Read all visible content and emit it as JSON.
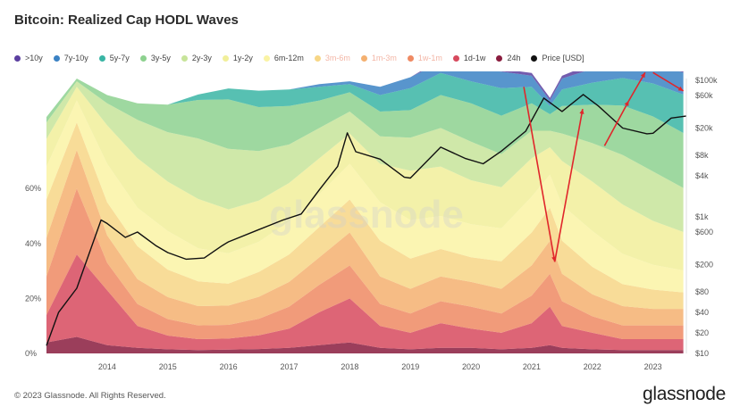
{
  "title": "Bitcoin: Realized Cap HODL Waves",
  "footer": "© 2023 Glassnode. All Rights Reserved.",
  "brand": "glassnode",
  "watermark": "glassnode",
  "legend": [
    {
      "label": ">10y",
      "color": "#5b3fa0",
      "faded": false
    },
    {
      "label": "7y-10y",
      "color": "#3b82c4",
      "faded": false
    },
    {
      "label": "5y-7y",
      "color": "#39b5a4",
      "faded": false
    },
    {
      "label": "3y-5y",
      "color": "#8dd18f",
      "faded": false
    },
    {
      "label": "2y-3y",
      "color": "#c7e49a",
      "faded": false
    },
    {
      "label": "1y-2y",
      "color": "#f1ef9a",
      "faded": false
    },
    {
      "label": "6m-12m",
      "color": "#faf3a4",
      "faded": false
    },
    {
      "label": "3m-6m",
      "color": "#f7d686",
      "faded": true
    },
    {
      "label": "1m-3m",
      "color": "#f4b070",
      "faded": true
    },
    {
      "label": "1w-1m",
      "color": "#ef8a63",
      "faded": true
    },
    {
      "label": "1d-1w",
      "color": "#d74a5e",
      "faded": false
    },
    {
      "label": "24h",
      "color": "#8a1c3e",
      "faded": false
    },
    {
      "label": "Price [USD]",
      "color": "#111111",
      "faded": false
    }
  ],
  "chart_data": {
    "type": "area",
    "title": "Bitcoin: Realized Cap HODL Waves",
    "x_ticks": [
      "2014",
      "2015",
      "2016",
      "2017",
      "2018",
      "2019",
      "2020",
      "2021",
      "2022",
      "2023"
    ],
    "y_left_ticks": [
      "0%",
      "20%",
      "40%",
      "60%"
    ],
    "y_right_ticks": [
      "$10",
      "$20",
      "$40",
      "$80",
      "$200",
      "$600",
      "$1k",
      "$4k",
      "$8k",
      "$20k",
      "$60k",
      "$100k"
    ],
    "y_right_scale": "log",
    "x_range": [
      2013.0,
      2023.55
    ],
    "stacked_percent": true,
    "x": [
      2013.0,
      2013.5,
      2014.0,
      2014.5,
      2015.0,
      2015.5,
      2016.0,
      2016.5,
      2017.0,
      2017.5,
      2018.0,
      2018.5,
      2019.0,
      2019.5,
      2020.0,
      2020.5,
      2021.0,
      2021.3,
      2021.5,
      2022.0,
      2022.5,
      2023.0,
      2023.5
    ],
    "series": [
      {
        "name": "24h",
        "values": [
          4,
          6,
          3,
          2,
          1.5,
          1.2,
          1.4,
          1.6,
          2,
          3,
          4,
          2,
          1.5,
          2,
          2,
          1.5,
          2,
          3,
          2,
          1.5,
          1.2,
          1.2,
          1.2
        ]
      },
      {
        "name": "1d-1w",
        "values": [
          10,
          30,
          20,
          8,
          5,
          4,
          4,
          5,
          7,
          12,
          16,
          8,
          6,
          9,
          7,
          6,
          9,
          14,
          8,
          6,
          4,
          4,
          4
        ]
      },
      {
        "name": "1w-1m",
        "values": [
          14,
          24,
          10,
          8,
          6,
          5,
          5,
          6,
          8,
          10,
          12,
          8,
          7,
          8,
          8,
          7,
          10,
          12,
          9,
          6,
          5,
          5,
          5
        ]
      },
      {
        "name": "1m-3m",
        "values": [
          14,
          14,
          10,
          9,
          8,
          7,
          7,
          8,
          9,
          10,
          12,
          10,
          9,
          9,
          9,
          9,
          11,
          12,
          10,
          8,
          7,
          6,
          6
        ]
      },
      {
        "name": "3m-6m",
        "values": [
          14,
          10,
          12,
          12,
          10,
          9,
          8,
          9,
          10,
          11,
          12,
          13,
          11,
          10,
          9,
          10,
          12,
          12,
          12,
          10,
          8,
          7,
          6
        ]
      },
      {
        "name": "6m-12m",
        "values": [
          12,
          8,
          14,
          14,
          14,
          12,
          11,
          11,
          12,
          12,
          13,
          14,
          14,
          12,
          12,
          12,
          13,
          12,
          13,
          13,
          11,
          9,
          8
        ]
      },
      {
        "name": "1y-2y",
        "values": [
          10,
          5,
          14,
          18,
          18,
          18,
          16,
          15,
          14,
          13,
          11,
          14,
          18,
          18,
          16,
          15,
          14,
          10,
          16,
          18,
          18,
          16,
          14
        ]
      },
      {
        "name": "2y-3y",
        "values": [
          6,
          2,
          8,
          14,
          18,
          22,
          22,
          18,
          14,
          11,
          8,
          10,
          12,
          14,
          14,
          12,
          10,
          6,
          10,
          14,
          18,
          18,
          16
        ]
      },
      {
        "name": "3y-5y",
        "values": [
          2,
          1,
          3,
          6,
          10,
          14,
          18,
          16,
          14,
          10,
          7,
          9,
          10,
          12,
          14,
          14,
          10,
          6,
          10,
          14,
          18,
          20,
          20
        ]
      },
      {
        "name": "5y-7y",
        "values": [
          0,
          0,
          0,
          0,
          0,
          2,
          4,
          6,
          6,
          5,
          3,
          6,
          8,
          8,
          8,
          10,
          6,
          3,
          6,
          8,
          10,
          12,
          14
        ]
      },
      {
        "name": "7y-10y",
        "values": [
          0,
          0,
          0,
          0,
          0,
          0,
          0,
          0,
          0,
          1,
          1,
          3,
          4,
          4,
          5,
          6,
          4,
          2,
          4,
          5,
          6,
          7,
          8
        ]
      },
      {
        "name": ">10y",
        "values": [
          0,
          0,
          0,
          0,
          0,
          0,
          0,
          0,
          0,
          0,
          0,
          0,
          0,
          1,
          1,
          1,
          1,
          1,
          1,
          2,
          2,
          2,
          2
        ]
      }
    ],
    "price_series": {
      "name": "Price [USD]",
      "x": [
        2013.0,
        2013.2,
        2013.5,
        2013.9,
        2014.0,
        2014.3,
        2014.5,
        2014.8,
        2015.0,
        2015.3,
        2015.6,
        2015.9,
        2016.0,
        2016.5,
        2016.9,
        2017.2,
        2017.5,
        2017.8,
        2017.96,
        2018.1,
        2018.5,
        2018.9,
        2019.0,
        2019.5,
        2019.9,
        2020.2,
        2020.5,
        2020.9,
        2021.2,
        2021.5,
        2021.85,
        2022.1,
        2022.5,
        2022.9,
        2023.0,
        2023.3,
        2023.55
      ],
      "y": [
        13,
        40,
        90,
        900,
        800,
        500,
        600,
        380,
        300,
        240,
        250,
        380,
        430,
        650,
        900,
        1100,
        2500,
        5500,
        17000,
        9000,
        7000,
        3800,
        3700,
        10500,
        7200,
        6000,
        9200,
        18000,
        55000,
        35000,
        62000,
        42000,
        20000,
        16500,
        16800,
        28000,
        30000
      ]
    }
  }
}
